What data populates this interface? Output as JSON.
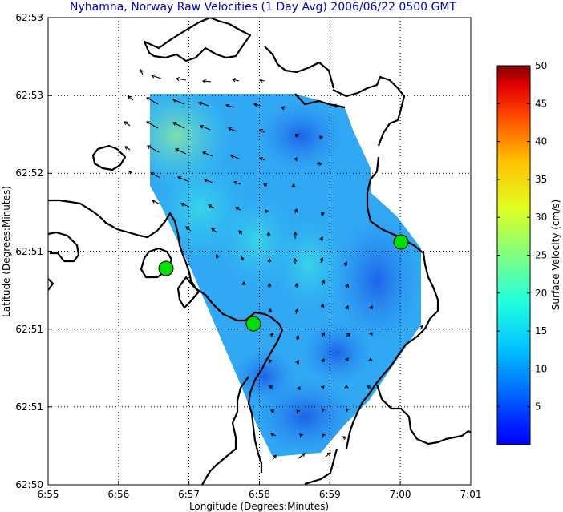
{
  "chart_data": {
    "type": "heatmap",
    "title": "Nyhamna, Norway Raw Velocities (1 Day Avg) 2006/06/22 0500 GMT",
    "xlabel": "Longitude (Degrees:Minutes)",
    "ylabel": "Latitude (Degrees:Minutes)",
    "x_ticks": [
      "6:55",
      "6:56",
      "6:57",
      "6:58",
      "6:59",
      "7:00",
      "7:01"
    ],
    "y_ticks": [
      "62:50",
      "62:51",
      "62:51",
      "62:51",
      "62:52",
      "62:53",
      "62:53"
    ],
    "grid": true,
    "colorbar": {
      "label": "Surface Velocity (cm/s)",
      "ticks": [
        "5",
        "10",
        "15",
        "20",
        "25",
        "30",
        "35",
        "40",
        "45",
        "50"
      ],
      "range": [
        0,
        50
      ],
      "colormap": "jet"
    },
    "stations": [
      {
        "lon_min": 56.7,
        "lat_min": 50.75,
        "color": "#00dd00"
      },
      {
        "lon_min": 57.9,
        "lat_min": 50.52,
        "color": "#00dd00"
      },
      {
        "lon_min": 60.1,
        "lat_min": 51.22,
        "color": "#00dd00"
      }
    ],
    "velocity_field_description": "Surface velocity mostly 3-15 cm/s, highest (~15-20 cm/s) in the upper-left of the domain, lowest (~3-6 cm/s) in the center-right and southern end."
  }
}
